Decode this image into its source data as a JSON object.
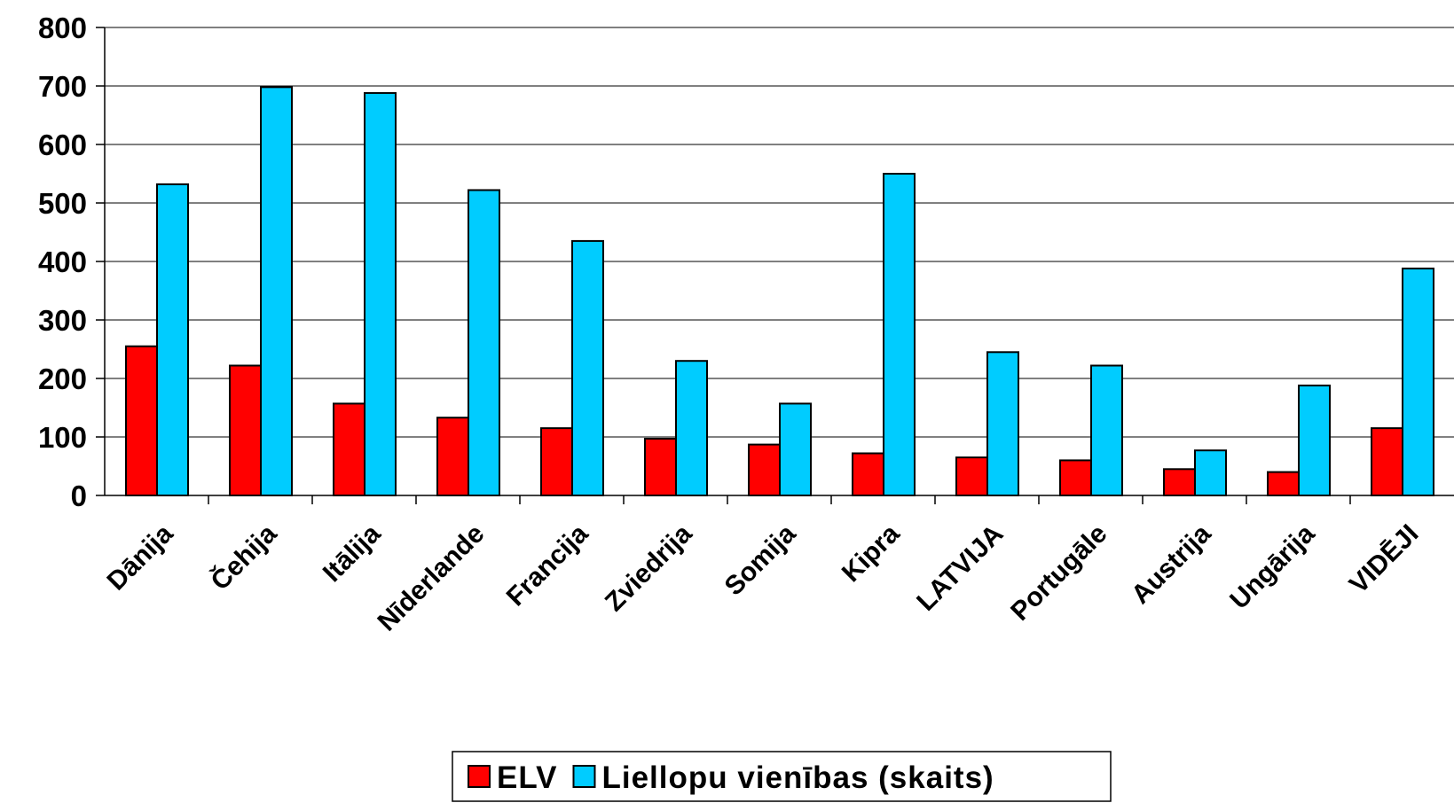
{
  "chart_data": {
    "type": "bar",
    "categories": [
      "Dānija",
      "Čehija",
      "Itālija",
      "Nīderlande",
      "Francija",
      "Zviedrija",
      "Somija",
      "Kipra",
      "LATVIJA",
      "Portugāle",
      "Austrija",
      "Ungārija",
      "VIDĒJI"
    ],
    "series": [
      {
        "name": "ELV",
        "color": "#ff0000",
        "values": [
          255,
          222,
          157,
          133,
          115,
          97,
          87,
          72,
          65,
          60,
          45,
          40,
          115
        ]
      },
      {
        "name": "Liellopu vienības (skaits)",
        "color": "#00ccff",
        "values": [
          532,
          698,
          688,
          522,
          435,
          230,
          157,
          550,
          245,
          222,
          77,
          188,
          388
        ]
      }
    ],
    "ylim": [
      0,
      800
    ],
    "yticks": [
      0,
      100,
      200,
      300,
      400,
      500,
      600,
      700,
      800
    ],
    "grid": true,
    "legend": "bottom"
  }
}
